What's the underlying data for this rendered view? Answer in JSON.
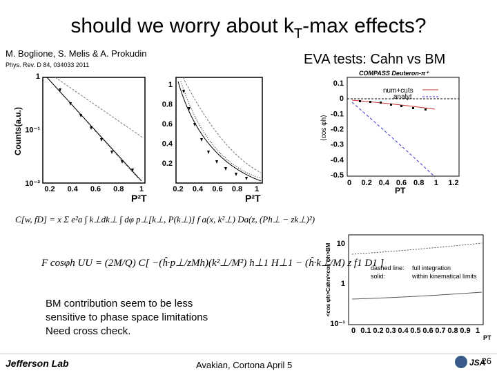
{
  "title": {
    "before": "should we worry about k",
    "sub": "T",
    "after": "-max effects?"
  },
  "authors": "M. Boglione, S. Melis & A. Prokudin",
  "reference": "Phys. Rev. D 84, 034033 2011",
  "section_title": "EVA tests: Cahn vs BM",
  "plot1": {
    "ylabel": "Counts(a.u.)",
    "yticks": [
      "1",
      "10⁻¹",
      "10⁻²"
    ],
    "xticks": [
      "0.2",
      "0.4",
      "0.6",
      "0.8",
      "1"
    ],
    "xlabel": "P²T"
  },
  "plot2": {
    "yticks": [
      "1",
      "0.8",
      "0.6",
      "0.4",
      "0.2"
    ],
    "xticks": [
      "0.2",
      "0.4",
      "0.6",
      "0.8",
      "1"
    ],
    "xlabel": "P²T"
  },
  "plot3": {
    "title": "COMPASS Deuteron-π⁺",
    "legend": [
      "num+cuts",
      "analyt"
    ],
    "yticks": [
      "0.1",
      "0",
      "-0.1",
      "-0.2",
      "-0.3",
      "-0.4",
      "-0.5"
    ],
    "xticks": [
      "0",
      "0.2",
      "0.4",
      "0.6",
      "0.8",
      "1",
      "1.2"
    ],
    "xlabel": "PT",
    "ylabel": "⟨cos φh⟩"
  },
  "formula1": "C[w, fD] = x Σ e²a ∫ k⊥dk⊥ ∫ dφ p⊥[k⊥, P(k⊥)] f a(x, k²⊥) Da(z, (Ph⊥ − zk⊥)²)",
  "formula2": "F cosφh UU = (2M/Q) C[ −(ĥ·p⊥/zMh)(k²⊥/M²) h⊥1 H⊥1 − (ĥ·k⊥/M) z f1 D1 ]",
  "comment": [
    "BM contribution seem to be less",
    "sensitive to phase space limitations",
    "Need cross check."
  ],
  "plot4": {
    "yticks": [
      "10",
      "1",
      "10⁻¹"
    ],
    "xticks": [
      "0",
      "0.1",
      "0.2",
      "0.3",
      "0.4",
      "0.5",
      "0.6",
      "0.7",
      "0.8",
      "0.9",
      "1"
    ],
    "xlabel": "PT",
    "ylabel": "<cos φh>Cahn/<cos φh>BM",
    "note": [
      "dashed line:",
      "full integration",
      "solid:",
      "within kinematical limits"
    ]
  },
  "footer": {
    "logo": "Jefferson Lab",
    "center": "Avakian, Cortona April 5",
    "jsa": "JSA",
    "page": "26"
  }
}
